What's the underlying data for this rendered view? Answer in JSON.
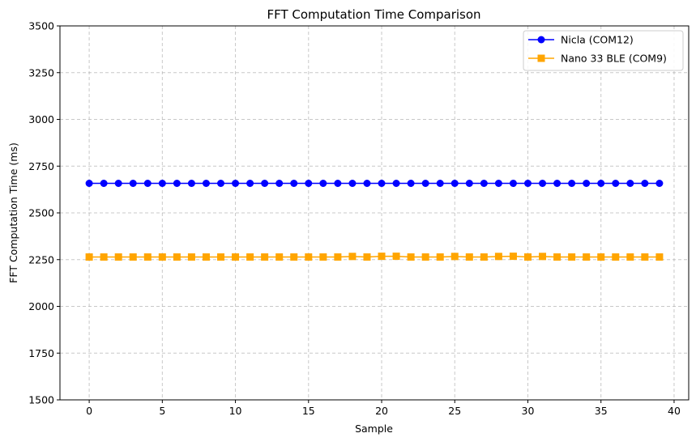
{
  "chart_data": {
    "type": "line",
    "title": "FFT Computation Time Comparison",
    "xlabel": "Sample",
    "ylabel": "FFT Computation Time (ms)",
    "xlim": [
      -2,
      41
    ],
    "ylim": [
      1500,
      3500
    ],
    "x_ticks": [
      0,
      5,
      10,
      15,
      20,
      25,
      30,
      35,
      40
    ],
    "x_tick_labels": [
      "0",
      "5",
      "10",
      "15",
      "20",
      "25",
      "30",
      "35",
      "40"
    ],
    "y_ticks": [
      1500,
      1750,
      2000,
      2250,
      2500,
      2750,
      3000,
      3250,
      3500
    ],
    "y_tick_labels": [
      "1500",
      "1750",
      "2000",
      "2250",
      "2500",
      "2750",
      "3000",
      "3250",
      "3500"
    ],
    "grid": true,
    "legend_position": "top-right",
    "x": [
      0,
      1,
      2,
      3,
      4,
      5,
      6,
      7,
      8,
      9,
      10,
      11,
      12,
      13,
      14,
      15,
      16,
      17,
      18,
      19,
      20,
      21,
      22,
      23,
      24,
      25,
      26,
      27,
      28,
      29,
      30,
      31,
      32,
      33,
      34,
      35,
      36,
      37,
      38,
      39
    ],
    "series": [
      {
        "name": "Nicla (COM12)",
        "color": "#0000ff",
        "marker": "circle",
        "values": [
          2658,
          2658,
          2658,
          2658,
          2658,
          2658,
          2658,
          2658,
          2658,
          2658,
          2658,
          2658,
          2658,
          2658,
          2658,
          2658,
          2658,
          2658,
          2658,
          2658,
          2658,
          2658,
          2658,
          2658,
          2658,
          2658,
          2658,
          2658,
          2658,
          2658,
          2658,
          2658,
          2658,
          2658,
          2658,
          2658,
          2658,
          2658,
          2658,
          2658
        ]
      },
      {
        "name": "Nano 33 BLE (COM9)",
        "color": "#ffa500",
        "marker": "square",
        "values": [
          2264,
          2264,
          2264,
          2264,
          2264,
          2264,
          2264,
          2264,
          2264,
          2264,
          2264,
          2264,
          2264,
          2264,
          2264,
          2264,
          2264,
          2264,
          2267,
          2264,
          2268,
          2268,
          2264,
          2264,
          2264,
          2267,
          2264,
          2264,
          2267,
          2268,
          2264,
          2267,
          2264,
          2264,
          2264,
          2264,
          2264,
          2264,
          2264,
          2264
        ]
      }
    ]
  }
}
